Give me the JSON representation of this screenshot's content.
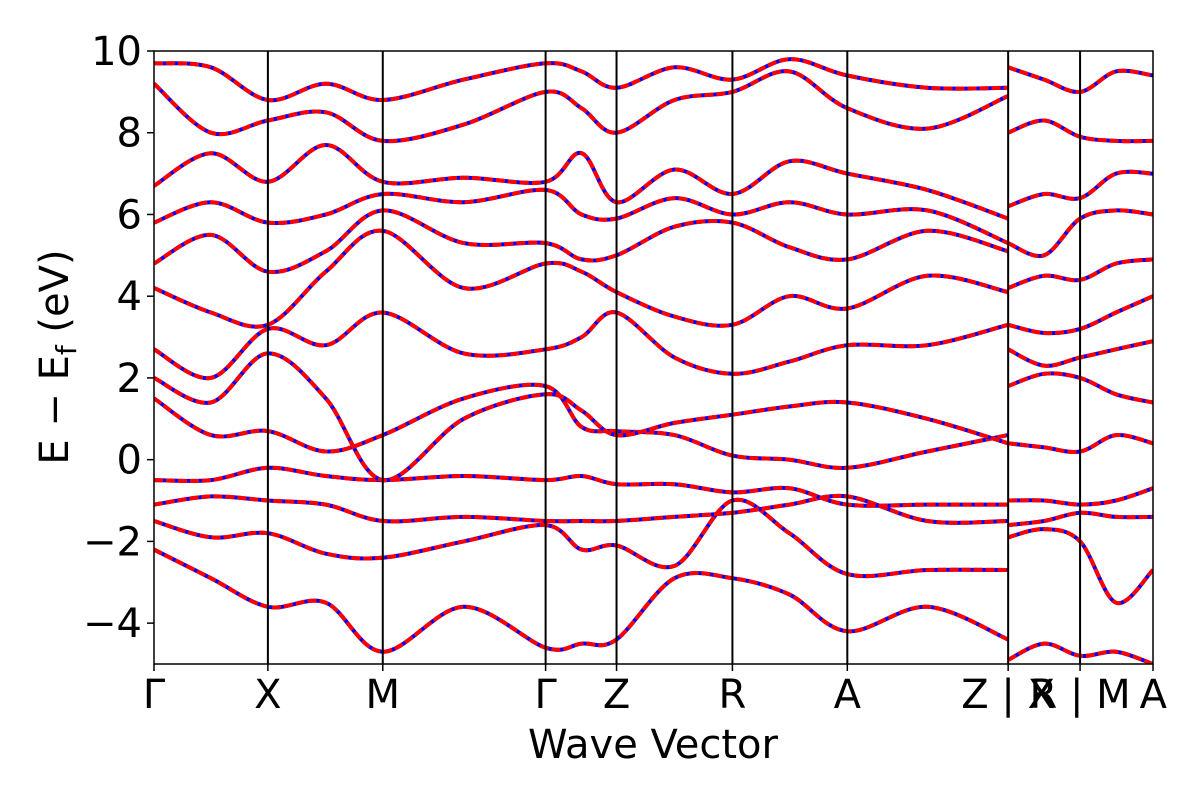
{
  "chart_data": {
    "type": "line",
    "title": "",
    "xlabel": "Wave Vector",
    "ylabel": "E − E_f (eV)",
    "ylabel_main": "E − E",
    "ylabel_sub": "f",
    "ylabel_tail": " (eV)",
    "ylim": [
      -5,
      10
    ],
    "xlim": [
      0,
      1
    ],
    "y_ticks": [
      -4,
      -2,
      0,
      2,
      4,
      6,
      8,
      10
    ],
    "y_tick_labels": [
      "−4",
      "−2",
      "0",
      "2",
      "4",
      "6",
      "8",
      "10"
    ],
    "grid": false,
    "legend": "none",
    "x_ticks": [
      {
        "label": "Γ",
        "x": 0.0
      },
      {
        "label": "X",
        "x": 0.114
      },
      {
        "label": "M",
        "x": 0.229
      },
      {
        "label": "Γ",
        "x": 0.392
      },
      {
        "label": "Z",
        "x": 0.463
      },
      {
        "label": "R",
        "x": 0.579
      },
      {
        "label": "A",
        "x": 0.694
      },
      {
        "label": "Z | X",
        "x": 0.855
      },
      {
        "label": "R | M",
        "x": 0.927
      },
      {
        "label": "A",
        "x": 1.0
      }
    ],
    "series_colors": {
      "reference": "#0000ff",
      "overlay": "#ff0000"
    },
    "bands_sampled": [
      {
        "x": [
          0,
          0.057,
          0.114,
          0.172,
          0.229,
          0.31,
          0.392,
          0.428,
          0.463,
          0.521,
          0.579,
          0.636,
          0.694,
          0.774,
          0.855
        ],
        "y": [
          -2.2,
          -2.9,
          -3.6,
          -3.5,
          -4.7,
          -3.6,
          -4.6,
          -4.5,
          -4.4,
          -2.9,
          -2.9,
          -3.3,
          -4.2,
          -3.6,
          -4.4
        ]
      },
      {
        "x": [
          0,
          0.057,
          0.114,
          0.172,
          0.229,
          0.31,
          0.392,
          0.428,
          0.463,
          0.521,
          0.579,
          0.636,
          0.694,
          0.774,
          0.855
        ],
        "y": [
          -1.5,
          -1.9,
          -1.8,
          -2.3,
          -2.4,
          -2.0,
          -1.6,
          -2.2,
          -2.1,
          -2.6,
          -1.0,
          -1.8,
          -2.8,
          -2.7,
          -2.7
        ]
      },
      {
        "x": [
          0,
          0.057,
          0.114,
          0.172,
          0.229,
          0.31,
          0.392,
          0.428,
          0.463,
          0.521,
          0.579,
          0.636,
          0.694,
          0.774,
          0.855
        ],
        "y": [
          -1.1,
          -0.9,
          -1.0,
          -1.1,
          -1.5,
          -1.4,
          -1.5,
          -1.5,
          -1.5,
          -1.4,
          -1.3,
          -1.1,
          -0.9,
          -1.5,
          -1.5
        ]
      },
      {
        "x": [
          0,
          0.057,
          0.114,
          0.172,
          0.229,
          0.31,
          0.392,
          0.428,
          0.463,
          0.521,
          0.579,
          0.636,
          0.694,
          0.774,
          0.855
        ],
        "y": [
          -0.5,
          -0.5,
          -0.2,
          -0.4,
          -0.5,
          -0.4,
          -0.5,
          -0.4,
          -0.6,
          -0.6,
          -0.8,
          -0.7,
          -1.1,
          -1.1,
          -1.1
        ]
      },
      {
        "x": [
          0,
          0.057,
          0.114,
          0.172,
          0.229,
          0.31,
          0.392,
          0.428,
          0.463,
          0.521,
          0.579,
          0.636,
          0.694,
          0.774,
          0.855
        ],
        "y": [
          1.5,
          0.6,
          0.7,
          0.2,
          0.6,
          1.5,
          1.8,
          0.8,
          0.7,
          0.6,
          0.1,
          0.0,
          -0.2,
          0.2,
          0.6
        ]
      },
      {
        "x": [
          0,
          0.057,
          0.114,
          0.172,
          0.229,
          0.31,
          0.392,
          0.428,
          0.463,
          0.521,
          0.579,
          0.636,
          0.694,
          0.774,
          0.855
        ],
        "y": [
          2.0,
          1.4,
          2.6,
          1.5,
          -0.5,
          1.0,
          1.6,
          1.2,
          0.6,
          0.9,
          1.1,
          1.3,
          1.4,
          1.0,
          0.4
        ]
      },
      {
        "x": [
          0,
          0.057,
          0.114,
          0.172,
          0.229,
          0.31,
          0.392,
          0.428,
          0.463,
          0.521,
          0.579,
          0.636,
          0.694,
          0.774,
          0.855
        ],
        "y": [
          2.7,
          2.0,
          3.2,
          2.8,
          3.6,
          2.6,
          2.7,
          3.0,
          3.6,
          2.5,
          2.1,
          2.4,
          2.8,
          2.8,
          3.3
        ]
      },
      {
        "x": [
          0,
          0.057,
          0.114,
          0.172,
          0.229,
          0.31,
          0.392,
          0.428,
          0.463,
          0.521,
          0.579,
          0.636,
          0.694,
          0.774,
          0.855
        ],
        "y": [
          4.2,
          3.6,
          3.3,
          4.6,
          5.6,
          4.2,
          4.8,
          4.6,
          4.1,
          3.5,
          3.3,
          4.0,
          3.7,
          4.5,
          4.1
        ]
      },
      {
        "x": [
          0,
          0.057,
          0.114,
          0.172,
          0.229,
          0.31,
          0.392,
          0.428,
          0.463,
          0.521,
          0.579,
          0.636,
          0.694,
          0.774,
          0.855
        ],
        "y": [
          4.8,
          5.5,
          4.6,
          5.1,
          6.1,
          5.3,
          5.3,
          4.9,
          5.0,
          5.7,
          5.8,
          5.2,
          4.9,
          5.6,
          5.1
        ]
      },
      {
        "x": [
          0,
          0.057,
          0.114,
          0.172,
          0.229,
          0.31,
          0.392,
          0.428,
          0.463,
          0.521,
          0.579,
          0.636,
          0.694,
          0.774,
          0.855
        ],
        "y": [
          5.8,
          6.3,
          5.8,
          6.0,
          6.5,
          6.3,
          6.6,
          6.0,
          5.9,
          6.4,
          6.0,
          6.3,
          6.0,
          6.1,
          5.3
        ]
      },
      {
        "x": [
          0,
          0.057,
          0.114,
          0.172,
          0.229,
          0.31,
          0.392,
          0.428,
          0.463,
          0.521,
          0.579,
          0.636,
          0.694,
          0.774,
          0.855
        ],
        "y": [
          6.7,
          7.5,
          6.8,
          7.7,
          6.8,
          6.9,
          6.8,
          7.5,
          6.3,
          7.1,
          6.5,
          7.3,
          7.0,
          6.6,
          5.9
        ]
      },
      {
        "x": [
          0,
          0.057,
          0.114,
          0.172,
          0.229,
          0.31,
          0.392,
          0.428,
          0.463,
          0.521,
          0.579,
          0.636,
          0.694,
          0.774,
          0.855
        ],
        "y": [
          9.2,
          8.0,
          8.3,
          8.5,
          7.8,
          8.2,
          9.0,
          8.6,
          8.0,
          8.8,
          9.0,
          9.5,
          8.6,
          8.1,
          8.9
        ]
      },
      {
        "x": [
          0,
          0.057,
          0.114,
          0.172,
          0.229,
          0.31,
          0.392,
          0.428,
          0.463,
          0.521,
          0.579,
          0.636,
          0.694,
          0.774,
          0.855
        ],
        "y": [
          9.7,
          9.6,
          8.8,
          9.2,
          8.8,
          9.3,
          9.7,
          9.5,
          9.1,
          9.6,
          9.3,
          9.8,
          9.4,
          9.1,
          9.1
        ]
      },
      {
        "x": [
          0.855,
          0.891,
          0.927,
          0.963,
          1.0
        ],
        "y": [
          -4.9,
          -4.5,
          -4.8,
          -4.7,
          -5.0
        ]
      },
      {
        "x": [
          0.855,
          0.891,
          0.927,
          0.963,
          1.0
        ],
        "y": [
          -1.9,
          -1.7,
          -2.0,
          -3.5,
          -2.7
        ]
      },
      {
        "x": [
          0.855,
          0.891,
          0.927,
          0.963,
          1.0
        ],
        "y": [
          -1.6,
          -1.5,
          -1.3,
          -1.4,
          -1.4
        ]
      },
      {
        "x": [
          0.855,
          0.891,
          0.927,
          0.963,
          1.0
        ],
        "y": [
          -1.0,
          -1.0,
          -1.1,
          -1.0,
          -0.7
        ]
      },
      {
        "x": [
          0.855,
          0.891,
          0.927,
          0.963,
          1.0
        ],
        "y": [
          0.4,
          0.3,
          0.2,
          0.6,
          0.4
        ]
      },
      {
        "x": [
          0.855,
          0.891,
          0.927,
          0.963,
          1.0
        ],
        "y": [
          1.8,
          2.1,
          2.0,
          1.6,
          1.4
        ]
      },
      {
        "x": [
          0.855,
          0.891,
          0.927,
          0.963,
          1.0
        ],
        "y": [
          2.7,
          2.3,
          2.5,
          2.7,
          2.9
        ]
      },
      {
        "x": [
          0.855,
          0.891,
          0.927,
          0.963,
          1.0
        ],
        "y": [
          3.3,
          3.1,
          3.2,
          3.6,
          4.0
        ]
      },
      {
        "x": [
          0.855,
          0.891,
          0.927,
          0.963,
          1.0
        ],
        "y": [
          4.2,
          4.5,
          4.4,
          4.8,
          4.9
        ]
      },
      {
        "x": [
          0.855,
          0.891,
          0.927,
          0.963,
          1.0
        ],
        "y": [
          5.3,
          5.0,
          5.9,
          6.1,
          6.0
        ]
      },
      {
        "x": [
          0.855,
          0.891,
          0.927,
          0.963,
          1.0
        ],
        "y": [
          6.2,
          6.5,
          6.4,
          7.0,
          7.0
        ]
      },
      {
        "x": [
          0.855,
          0.891,
          0.927,
          0.963,
          1.0
        ],
        "y": [
          8.0,
          8.3,
          7.9,
          7.8,
          7.8
        ]
      },
      {
        "x": [
          0.855,
          0.891,
          0.927,
          0.963,
          1.0
        ],
        "y": [
          9.6,
          9.3,
          9.0,
          9.5,
          9.4
        ]
      }
    ]
  }
}
